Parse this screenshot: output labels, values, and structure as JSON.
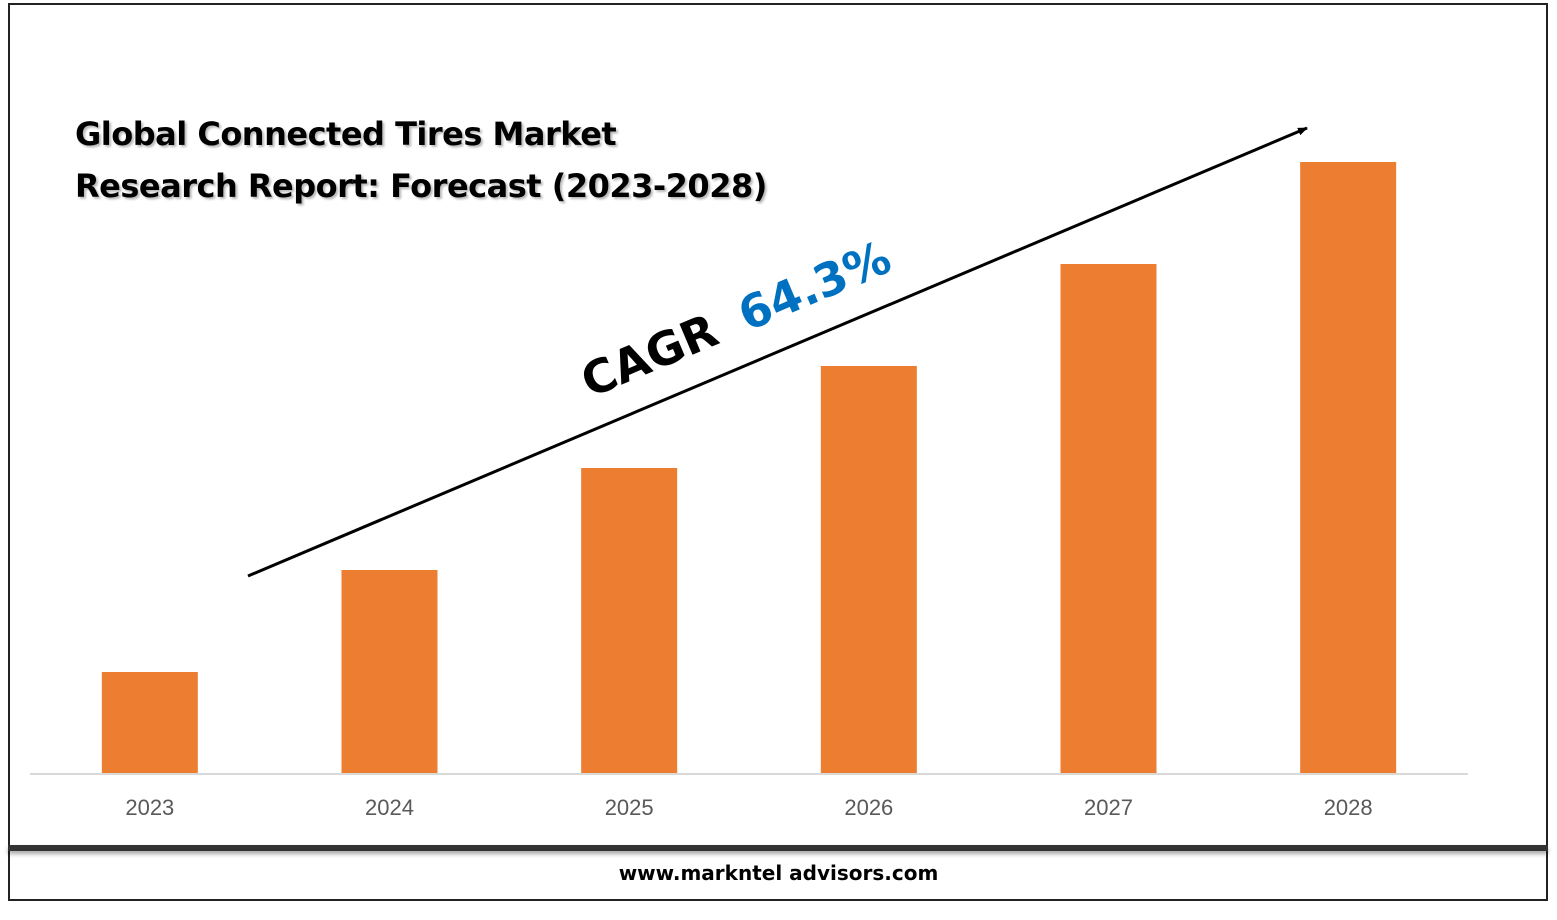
{
  "title_lines": [
    "Global Connected Tires Market",
    "Research Report: Forecast (2023-2028)"
  ],
  "annotation": {
    "prefix": "CAGR",
    "value": "64.3%",
    "prefix_color": "#000000",
    "value_color": "#0070C0"
  },
  "footer": {
    "url": "www.markntel advisors.com"
  },
  "colors": {
    "bar": "#ED7D31",
    "axis": "#D9D9D9",
    "tick_text": "#595959"
  },
  "chart_data": {
    "type": "bar",
    "title": "Global Connected Tires Market Research Report: Forecast (2023-2028)",
    "categories": [
      "2023",
      "2024",
      "2025",
      "2026",
      "2027",
      "2028"
    ],
    "values": [
      1,
      2,
      3,
      4,
      5,
      6
    ],
    "ylim": [
      0,
      6
    ],
    "grid": false,
    "legend": "none",
    "xlabel": "",
    "ylabel": ""
  }
}
